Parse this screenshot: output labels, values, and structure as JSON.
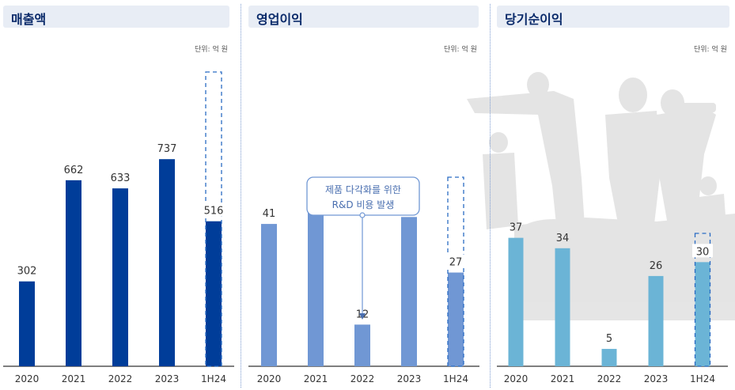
{
  "colors": {
    "revenue_bar": "#003d99",
    "op_bar": "#7097d4",
    "net_bar": "#6bb4d6",
    "title_bg": "#e8edf5",
    "title_text": "#0a2a6a",
    "divider": "#7c9bd0"
  },
  "icons": [
    "business-people-silhouette-icon"
  ],
  "callout": {
    "line1": "제품 다각화를 위한",
    "line2": "R&D 비용 발생"
  },
  "chart_data": [
    {
      "type": "bar",
      "title": "매출액",
      "unit": "단위: 억 원",
      "categories": [
        "2020",
        "2021",
        "2022",
        "2023",
        "1H24"
      ],
      "values": [
        302,
        662,
        633,
        737,
        516
      ],
      "ylim": [
        0,
        1050
      ],
      "projected_last": true,
      "grid": false
    },
    {
      "type": "bar",
      "title": "영업이익",
      "unit": "단위: 억 원",
      "categories": [
        "2020",
        "2021",
        "2022",
        "2023",
        "1H24"
      ],
      "values": [
        41,
        50,
        12,
        43,
        27
      ],
      "ylim": [
        0,
        85
      ],
      "projected_last": true,
      "grid": false
    },
    {
      "type": "bar",
      "title": "당기순이익",
      "unit": "단위: 억 원",
      "categories": [
        "2020",
        "2021",
        "2022",
        "2023",
        "1H24"
      ],
      "values": [
        37,
        34,
        5,
        26,
        30
      ],
      "ylim": [
        0,
        85
      ],
      "projected_last": true,
      "grid": false
    }
  ]
}
